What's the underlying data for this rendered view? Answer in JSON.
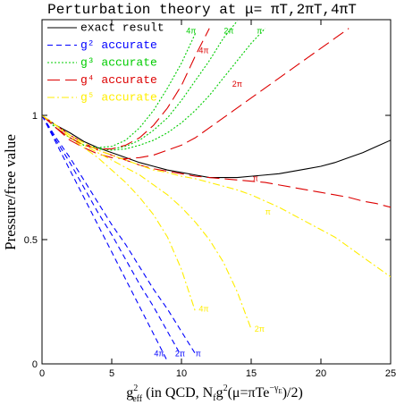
{
  "chart_data": {
    "type": "line",
    "title": "Perturbation theory at μ= πT,2πT,4πT",
    "y_label": "Pressure/free value",
    "x_label": [
      "g",
      "2",
      "eff",
      " (in QCD, N",
      "f",
      "g",
      "2",
      "(μ=πTe",
      "−γ",
      "E",
      ")/2)"
    ],
    "xlim": [
      0,
      25
    ],
    "xticks": [
      0,
      5,
      10,
      15,
      20,
      25
    ],
    "ylim": [
      0,
      1.385
    ],
    "yticks": [
      0,
      0.5,
      1
    ],
    "legend": "upper left",
    "x": [
      0,
      1,
      2,
      3,
      4,
      5,
      6,
      7,
      8,
      9,
      10,
      11,
      12,
      13,
      14,
      15,
      16,
      17,
      18,
      19,
      20,
      21,
      22,
      23,
      24,
      25
    ],
    "series": [
      {
        "name": "exact result",
        "color": "#000000",
        "dash": "solid",
        "curves": [
          {
            "values": [
              1,
              0.96,
              0.93,
              0.895,
              0.87,
              0.85,
              0.83,
              0.81,
              0.795,
              0.78,
              0.77,
              0.76,
              0.75,
              0.75,
              0.75,
              0.755,
              0.76,
              0.765,
              0.775,
              0.785,
              0.795,
              0.81,
              0.83,
              0.85,
              0.875,
              0.9
            ]
          }
        ]
      },
      {
        "name": "g² accurate",
        "color": "#0000ff",
        "dash": "dashed",
        "curves": [
          {
            "label": "4π",
            "values": [
              1,
              0.89,
              0.78,
              0.67,
              0.56,
              0.45,
              0.34,
              0.23,
              0.12,
              0.01,
              null,
              null,
              null,
              null,
              null,
              null,
              null,
              null,
              null,
              null,
              null,
              null,
              null,
              null,
              null,
              null
            ]
          },
          {
            "label": "2π",
            "values": [
              1,
              0.9,
              0.81,
              0.71,
              0.61,
              0.52,
              0.42,
              0.32,
              0.23,
              0.13,
              0.03,
              null,
              null,
              null,
              null,
              null,
              null,
              null,
              null,
              null,
              null,
              null,
              null,
              null,
              null,
              null
            ]
          },
          {
            "label": "π",
            "values": [
              1,
              0.91,
              0.83,
              0.74,
              0.65,
              0.56,
              0.48,
              0.39,
              0.3,
              0.22,
              0.13,
              0.04,
              null,
              null,
              null,
              null,
              null,
              null,
              null,
              null,
              null,
              null,
              null,
              null,
              null,
              null
            ]
          }
        ]
      },
      {
        "name": "g³ accurate",
        "color": "#00cc00",
        "dash": "dotted",
        "curves": [
          {
            "label": "4π",
            "values": [
              1,
              0.95,
              0.91,
              0.88,
              0.87,
              0.875,
              0.9,
              0.95,
              1.02,
              1.11,
              1.21,
              1.33,
              null,
              null,
              null,
              null,
              null,
              null,
              null,
              null,
              null,
              null,
              null,
              null,
              null,
              null
            ]
          },
          {
            "label": "2π",
            "values": [
              1,
              0.95,
              0.91,
              0.88,
              0.865,
              0.865,
              0.875,
              0.9,
              0.94,
              0.99,
              1.06,
              1.14,
              1.22,
              1.31,
              1.38,
              null,
              null,
              null,
              null,
              null,
              null,
              null,
              null,
              null,
              null,
              null
            ]
          },
          {
            "label": "π",
            "values": [
              1,
              0.95,
              0.91,
              0.88,
              0.865,
              0.86,
              0.865,
              0.88,
              0.9,
              0.93,
              0.97,
              1.02,
              1.08,
              1.15,
              1.22,
              1.29,
              1.35,
              null,
              null,
              null,
              null,
              null,
              null,
              null,
              null,
              null
            ]
          }
        ]
      },
      {
        "name": "g⁴ accurate",
        "color": "#dd0000",
        "dash": "longdash",
        "curves": [
          {
            "label": "4π",
            "values": [
              1,
              0.95,
              0.91,
              0.88,
              0.865,
              0.865,
              0.88,
              0.91,
              0.96,
              1.03,
              1.12,
              1.24,
              1.35,
              null,
              null,
              null,
              null,
              null,
              null,
              null,
              null,
              null,
              null,
              null,
              null,
              null
            ]
          },
          {
            "label": "2π",
            "values": [
              1,
              0.95,
              0.9,
              0.87,
              0.845,
              0.83,
              0.825,
              0.83,
              0.84,
              0.86,
              0.88,
              0.91,
              0.95,
              0.99,
              1.03,
              1.07,
              1.11,
              1.15,
              1.19,
              1.23,
              1.27,
              1.31,
              1.35,
              null,
              null,
              null
            ]
          },
          {
            "label": "π",
            "values": [
              1,
              0.96,
              0.92,
              0.89,
              0.86,
              0.84,
              0.82,
              0.8,
              0.785,
              0.775,
              0.765,
              0.755,
              0.75,
              0.745,
              0.74,
              0.735,
              0.73,
              0.72,
              0.71,
              0.7,
              0.69,
              0.68,
              0.67,
              0.655,
              0.645,
              0.63
            ]
          }
        ]
      },
      {
        "name": "g⁵ accurate",
        "color": "#ffee00",
        "dash": "dashdot",
        "curves": [
          {
            "label": "4π",
            "values": [
              1,
              0.96,
              0.91,
              0.87,
              0.83,
              0.78,
              0.73,
              0.67,
              0.6,
              0.51,
              0.38,
              0.21,
              null,
              null,
              null,
              null,
              null,
              null,
              null,
              null,
              null,
              null,
              null,
              null,
              null,
              null
            ]
          },
          {
            "label": "2π",
            "values": [
              1,
              0.96,
              0.92,
              0.88,
              0.85,
              0.82,
              0.79,
              0.76,
              0.72,
              0.68,
              0.63,
              0.57,
              0.5,
              0.41,
              0.29,
              0.14,
              null,
              null,
              null,
              null,
              null,
              null,
              null,
              null,
              null,
              null
            ]
          },
          {
            "label": "π",
            "values": [
              1,
              0.96,
              0.92,
              0.89,
              0.86,
              0.84,
              0.82,
              0.8,
              0.78,
              0.77,
              0.755,
              0.745,
              0.73,
              0.715,
              0.7,
              0.68,
              0.655,
              0.63,
              0.6,
              0.57,
              0.54,
              0.51,
              0.47,
              0.43,
              0.39,
              0.35
            ]
          }
        ]
      }
    ]
  }
}
